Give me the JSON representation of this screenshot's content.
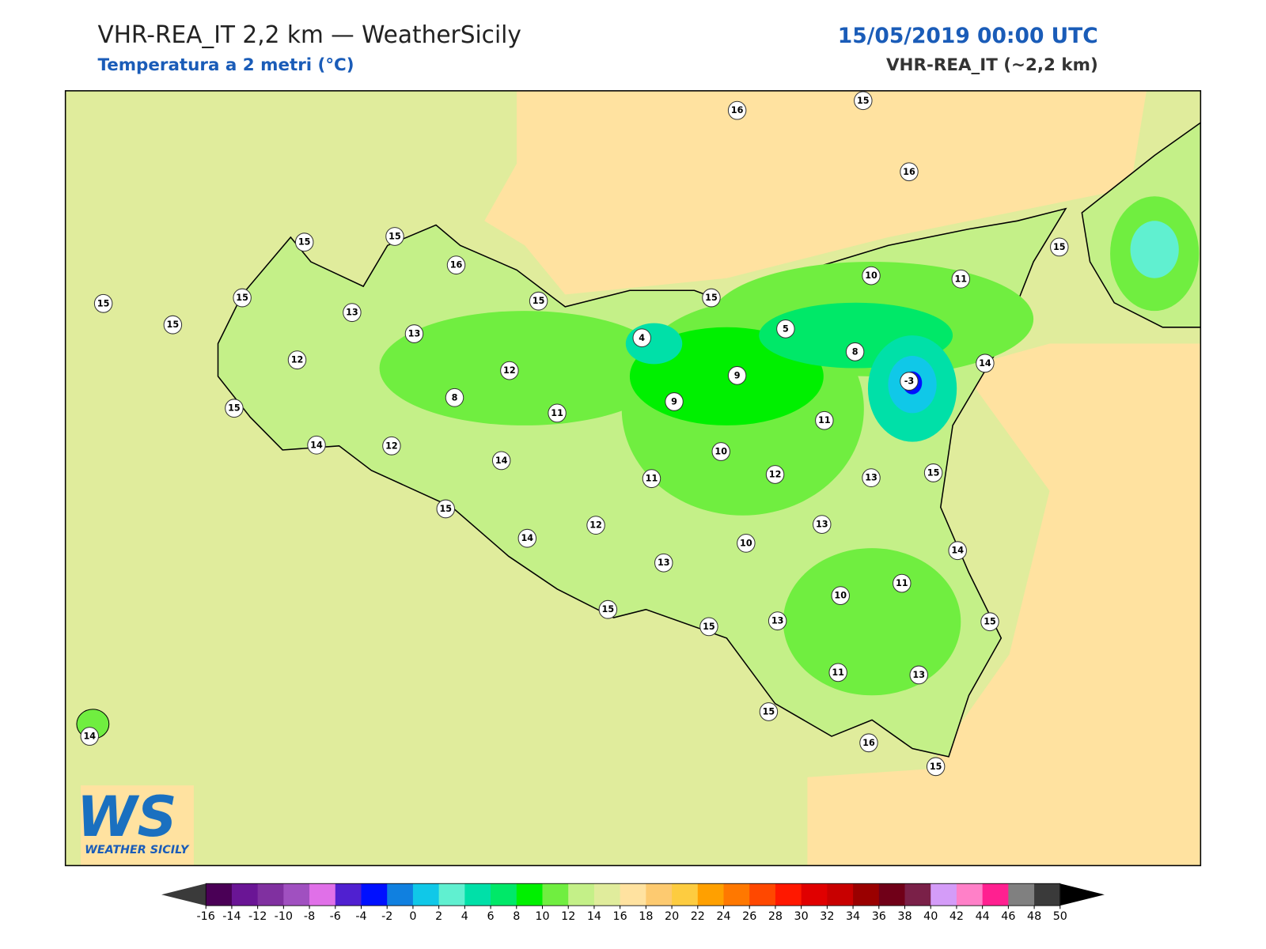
{
  "header": {
    "title": "VHR-REA_IT 2,2 km — WeatherSicily",
    "subtitle": "Temperatura a 2 metri (°C)",
    "datetime": "15/05/2019 00:00 UTC",
    "model": "VHR-REA_IT (~2,2 km)"
  },
  "stations": [
    16,
    15,
    16,
    15,
    15,
    16,
    15,
    15,
    15,
    13,
    13,
    15,
    15,
    10,
    11,
    15,
    4,
    5,
    8,
    14,
    12,
    12,
    9,
    -3,
    8,
    9,
    11,
    11,
    15,
    14,
    12,
    14,
    10,
    12,
    13,
    15,
    11,
    15,
    14,
    12,
    13,
    10,
    13,
    14,
    11,
    10,
    15,
    15,
    13,
    15,
    11,
    13,
    15,
    16,
    15,
    14
  ],
  "colorbar": {
    "ticks": [
      -16,
      -14,
      -12,
      -10,
      -8,
      -6,
      -4,
      -2,
      0,
      2,
      4,
      6,
      8,
      10,
      12,
      14,
      16,
      18,
      20,
      22,
      24,
      26,
      28,
      30,
      32,
      34,
      36,
      38,
      40,
      42,
      44,
      46,
      48,
      50
    ],
    "colors": [
      "#4a0056",
      "#6a1595",
      "#8030a0",
      "#a050c0",
      "#e070e8",
      "#5020d0",
      "#0010ff",
      "#1080e0",
      "#10c8e8",
      "#60f0d0",
      "#00e0a8",
      "#00e868",
      "#00f000",
      "#70ee40",
      "#c4f088",
      "#e0ec9c",
      "#ffe2a0",
      "#fdca70",
      "#fdcc40",
      "#ffa000",
      "#ff7800",
      "#ff4800",
      "#ff1800",
      "#e00000",
      "#c80000",
      "#9a0000",
      "#700018",
      "#7a2048",
      "#d49cf8",
      "#ff80c8",
      "#ff2090",
      "#808080",
      "#3a3a3a"
    ],
    "under": "#3a3a3a",
    "over": "#000000"
  },
  "logo": {
    "mark": "WS",
    "name": "WEATHER SICILY"
  }
}
